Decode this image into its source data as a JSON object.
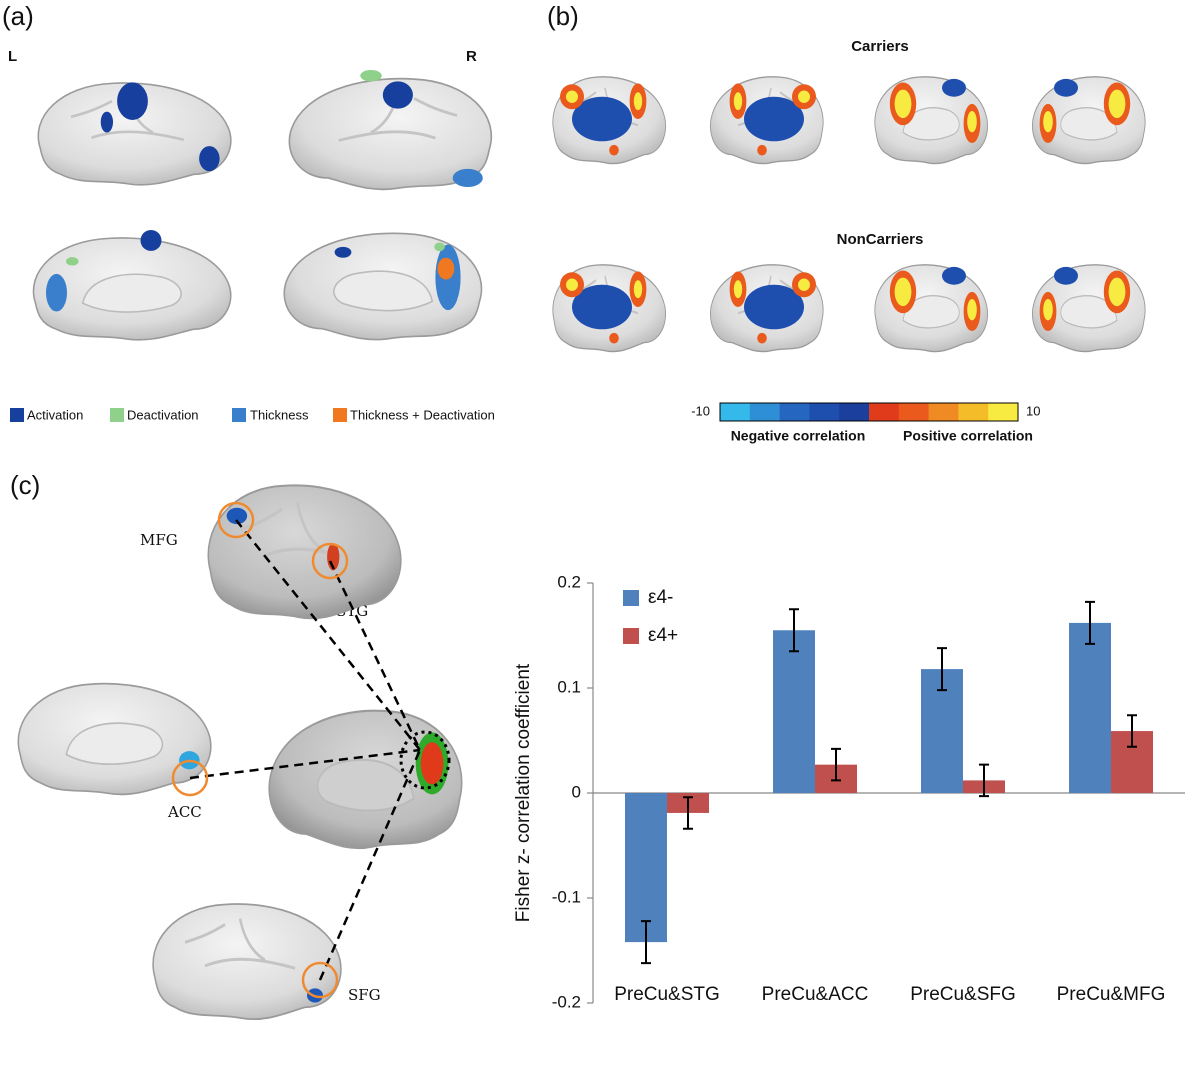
{
  "panels": {
    "a": "(a)",
    "b": "(b)",
    "c": "(c)"
  },
  "panel_a": {
    "left": "L",
    "right": "R",
    "legend": [
      {
        "name": "Activation",
        "color": "#173f9e"
      },
      {
        "name": "Deactivation",
        "color": "#8fd08a"
      },
      {
        "name": "Thickness",
        "color": "#3a7fcc"
      },
      {
        "name": "Thickness + Deactivation",
        "color": "#f07820"
      }
    ]
  },
  "panel_b": {
    "groups": [
      "Carriers",
      "NonCarriers"
    ],
    "colorbar": {
      "min": -10,
      "max": 10,
      "negative": "Negative correlation",
      "positive": "Positive correlation",
      "colors": [
        "#35b8ea",
        "#2f8fd6",
        "#2566c0",
        "#1e4fae",
        "#1b3f9c",
        "#e03b1a",
        "#ea5a1c",
        "#f08a22",
        "#f5bc2a",
        "#f7ea40"
      ]
    }
  },
  "panel_c": {
    "regions": [
      "MFG",
      "STG",
      "ACC",
      "SFG"
    ]
  },
  "chart_data": {
    "type": "bar",
    "categories": [
      "PreCu&STG",
      "PreCu&ACC",
      "PreCu&SFG",
      "PreCu&MFG"
    ],
    "series": [
      {
        "name": "ε4-",
        "color": "#4f81bd",
        "values": [
          -0.142,
          0.155,
          0.118,
          0.162
        ],
        "errors": [
          0.02,
          0.02,
          0.02,
          0.02
        ]
      },
      {
        "name": "ε4+",
        "color": "#c0504d",
        "values": [
          -0.019,
          0.027,
          0.012,
          0.059
        ],
        "errors": [
          0.015,
          0.015,
          0.015,
          0.015
        ]
      }
    ],
    "y_label": "Fisher z- correlation coefficient",
    "ylim": [
      -0.2,
      0.2
    ],
    "yticks": [
      0.2,
      0.1,
      0,
      -0.1,
      -0.2
    ]
  }
}
